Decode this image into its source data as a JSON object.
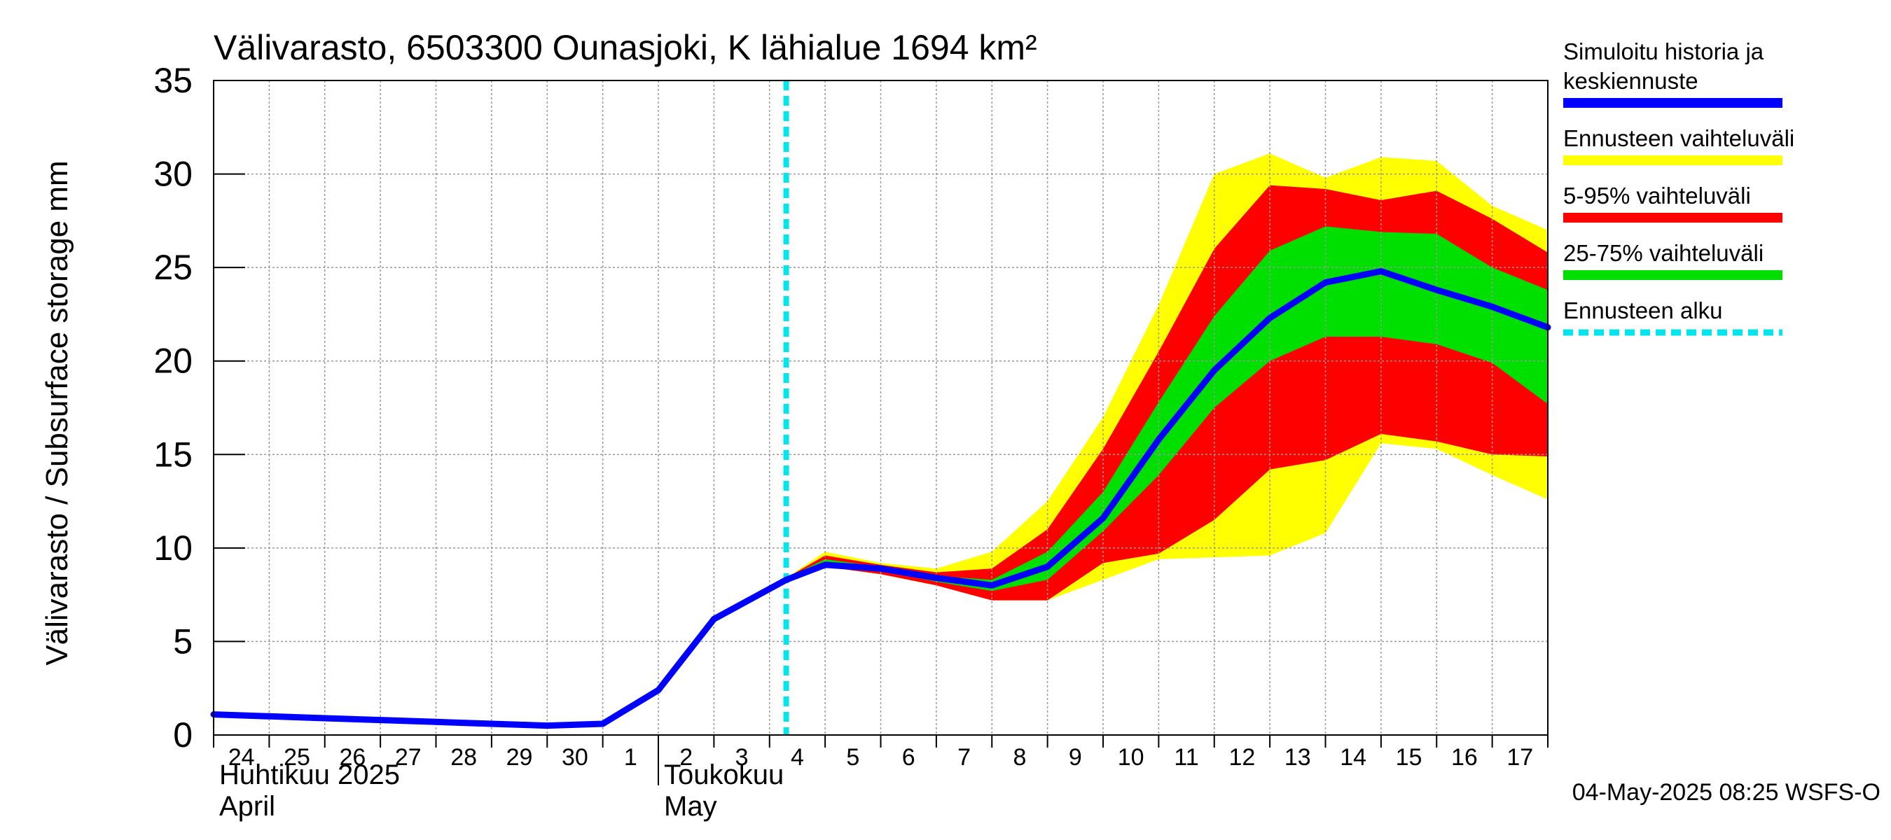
{
  "chart_data": {
    "type": "area",
    "title": "Välivarasto, 6503300 Ounasjoki, K lähialue 1694 km²",
    "ylabel": "Välivarasto / Subsurface storage  mm",
    "ylim": [
      0,
      35
    ],
    "yticks": [
      0,
      5,
      10,
      15,
      20,
      25,
      30,
      35
    ],
    "xlim": [
      0,
      24
    ],
    "day_labels": [
      "24",
      "25",
      "26",
      "27",
      "28",
      "29",
      "30",
      "1",
      "2",
      "3",
      "4",
      "5",
      "6",
      "7",
      "8",
      "9",
      "10",
      "11",
      "12",
      "13",
      "14",
      "15",
      "16",
      "17"
    ],
    "month_labels": [
      {
        "day_index": 0,
        "fi": "Huhtikuu  2025",
        "en": "April"
      },
      {
        "day_index": 8,
        "fi": "Toukokuu",
        "en": "May"
      }
    ],
    "forecast_start_day": 10.3,
    "x": [
      10.3,
      11,
      12,
      13,
      14,
      15,
      16,
      17,
      18,
      19,
      20,
      21,
      22,
      23,
      24
    ],
    "range_full": {
      "upper": [
        8.4,
        9.8,
        9.2,
        8.9,
        9.8,
        12.5,
        17.0,
        23.0,
        30.0,
        31.1,
        29.8,
        30.9,
        30.7,
        28.3,
        27.0
      ],
      "lower": [
        8.4,
        9.0,
        8.6,
        8.0,
        7.2,
        7.2,
        8.3,
        9.4,
        9.5,
        9.6,
        10.8,
        15.6,
        15.3,
        13.9,
        12.6
      ]
    },
    "range_5_95": {
      "upper": [
        8.4,
        9.6,
        9.1,
        8.7,
        8.9,
        11.0,
        15.3,
        20.5,
        26.0,
        29.4,
        29.2,
        28.6,
        29.1,
        27.6,
        25.8
      ],
      "lower": [
        8.4,
        9.0,
        8.6,
        8.0,
        7.2,
        7.2,
        9.2,
        9.7,
        11.5,
        14.2,
        14.7,
        16.1,
        15.7,
        15.0,
        14.9
      ]
    },
    "range_25_75": {
      "upper": [
        8.4,
        9.4,
        9.0,
        8.5,
        8.3,
        9.8,
        13.0,
        17.8,
        22.4,
        25.9,
        27.2,
        26.9,
        26.8,
        25.0,
        23.8
      ],
      "lower": [
        8.4,
        9.1,
        8.8,
        8.2,
        7.7,
        8.3,
        10.9,
        13.9,
        17.5,
        20.0,
        21.3,
        21.3,
        20.9,
        19.9,
        17.7
      ]
    },
    "series": [
      {
        "name": "Simuloitu historia ja keskiennuste",
        "x": [
          0,
          1,
          2,
          3,
          4,
          5,
          6,
          7,
          8,
          9,
          10.3,
          11,
          12,
          13,
          14,
          15,
          16,
          17,
          18,
          19,
          20,
          21,
          22,
          23,
          24
        ],
        "values": [
          1.1,
          1.0,
          0.9,
          0.8,
          0.7,
          0.6,
          0.5,
          0.6,
          2.4,
          6.2,
          8.3,
          9.1,
          8.9,
          8.4,
          8.0,
          9.0,
          11.6,
          15.8,
          19.5,
          22.3,
          24.2,
          24.8,
          23.8,
          22.9,
          21.8
        ]
      }
    ],
    "legend": [
      {
        "label_lines": [
          "Simuloitu historia ja",
          "keskiennuste"
        ],
        "color": "#0000ff",
        "style": "solid"
      },
      {
        "label_lines": [
          "Ennusteen vaihteluväli"
        ],
        "color": "#ffff00",
        "style": "solid"
      },
      {
        "label_lines": [
          "5-95% vaihteluväli"
        ],
        "color": "#ff0000",
        "style": "solid"
      },
      {
        "label_lines": [
          "25-75% vaihteluväli"
        ],
        "color": "#00e000",
        "style": "solid"
      },
      {
        "label_lines": [
          "Ennusteen alku"
        ],
        "color": "#00e5ee",
        "style": "dashed"
      }
    ],
    "legend_position": "right",
    "timestamp": "04-May-2025 08:25 WSFS-O",
    "colors": {
      "mean": "#0000ff",
      "full": "#ffff00",
      "p5_95": "#ff0000",
      "p25_75": "#00e000",
      "forecast_line": "#00e5ee",
      "grid": "#999999"
    }
  }
}
